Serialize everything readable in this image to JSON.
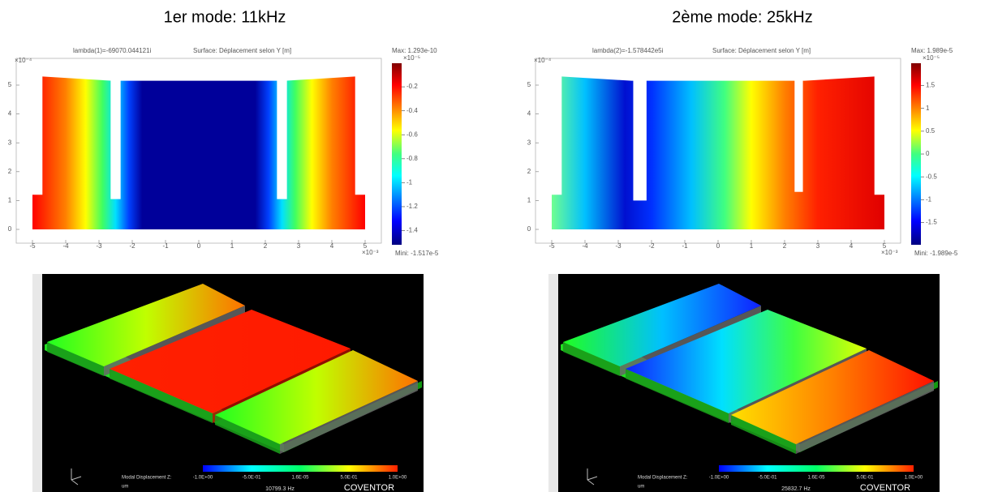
{
  "panels": [
    {
      "title": "1er mode: 11kHz",
      "plot": {
        "eigenvalue": "lambda(1)=-69070.044121i",
        "surface": "Surface: Déplacement selon Y [m]",
        "max": "Max: 1.293e-10",
        "min": "Mini: -1.517e-5",
        "y_exponent": "×10⁻⁴",
        "x_exponent": "×10⁻³",
        "colorbar_exponent": "×10⁻⁵",
        "yticks": [
          "0",
          "1",
          "2",
          "3",
          "4",
          "5"
        ],
        "xticks": [
          "-5",
          "-4",
          "-3",
          "-2",
          "-1",
          "0",
          "1",
          "2",
          "3",
          "4",
          "5"
        ],
        "colorbar_ticks": [
          "-0.2",
          "-0.4",
          "-0.6",
          "-0.8",
          "-1",
          "-1.2",
          "-1.4"
        ]
      },
      "render": {
        "legend_label": "Modal Displacement Z:",
        "legend_ticks": [
          "-1.0E+00",
          "-5.0E-01",
          "1.6E-05",
          "5.0E-01",
          "1.0E+00"
        ],
        "unit": "um",
        "frequency": "10799.3 Hz",
        "brand": "COVENTOR"
      }
    },
    {
      "title": "2ème mode: 25kHz",
      "plot": {
        "eigenvalue": "lambda(2)=-1.578442e5i",
        "surface": "Surface: Déplacement selon Y [m]",
        "max": "Max: 1.989e-5",
        "min": "Mini: -1.989e-5",
        "y_exponent": "×10⁻⁴",
        "x_exponent": "×10⁻³",
        "colorbar_exponent": "×10⁻⁵",
        "yticks": [
          "0",
          "1",
          "2",
          "3",
          "4",
          "5"
        ],
        "xticks": [
          "-5",
          "-4",
          "-3",
          "-2",
          "-1",
          "0",
          "1",
          "2",
          "3",
          "4",
          "5"
        ],
        "colorbar_ticks": [
          "1.5",
          "1",
          "0.5",
          "0",
          "-0.5",
          "-1",
          "-1.5"
        ]
      },
      "render": {
        "legend_label": "Modal Displacement Z:",
        "legend_ticks": [
          "-1.0E+00",
          "-5.0E-01",
          "1.6E-05",
          "5.0E-01",
          "1.0E+00"
        ],
        "unit": "um",
        "frequency": "25832.7 Hz",
        "brand": "COVENTOR"
      }
    }
  ]
}
